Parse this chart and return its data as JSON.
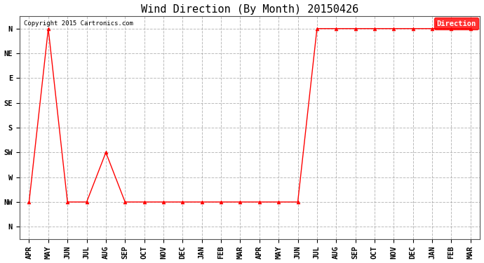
{
  "title": "Wind Direction (By Month) 20150426",
  "copyright": "Copyright 2015 Cartronics.com",
  "legend_label": "Direction",
  "legend_bg": "#ff0000",
  "legend_text_color": "#ffffff",
  "x_labels": [
    "APR",
    "MAY",
    "JUN",
    "JUL",
    "AUG",
    "SEP",
    "OCT",
    "NOV",
    "DEC",
    "JAN",
    "FEB",
    "MAR",
    "APR",
    "MAY",
    "JUN",
    "JUL",
    "AUG",
    "SEP",
    "OCT",
    "NOV",
    "DEC",
    "JAN",
    "FEB",
    "MAR"
  ],
  "y_labels": [
    "N",
    "NW",
    "W",
    "SW",
    "S",
    "SE",
    "E",
    "NE",
    "N"
  ],
  "y_values": [
    8,
    7,
    6,
    5,
    4,
    3,
    2,
    1,
    0
  ],
  "data_x": [
    0,
    1,
    2,
    3,
    4,
    5,
    6,
    7,
    8,
    9,
    10,
    11,
    12,
    13,
    14,
    15,
    16,
    17,
    18,
    19,
    20,
    21,
    22,
    23
  ],
  "data_y": [
    7,
    0,
    7,
    7,
    5,
    7,
    7,
    7,
    7,
    7,
    7,
    7,
    7,
    7,
    7,
    0,
    0,
    0,
    0,
    0,
    0,
    0,
    0,
    0
  ],
  "line_color": "#ff0000",
  "marker": "^",
  "marker_size": 3.5,
  "bg_color": "#ffffff",
  "grid_color": "#aaaaaa",
  "title_fontsize": 11,
  "tick_fontsize": 7.5
}
